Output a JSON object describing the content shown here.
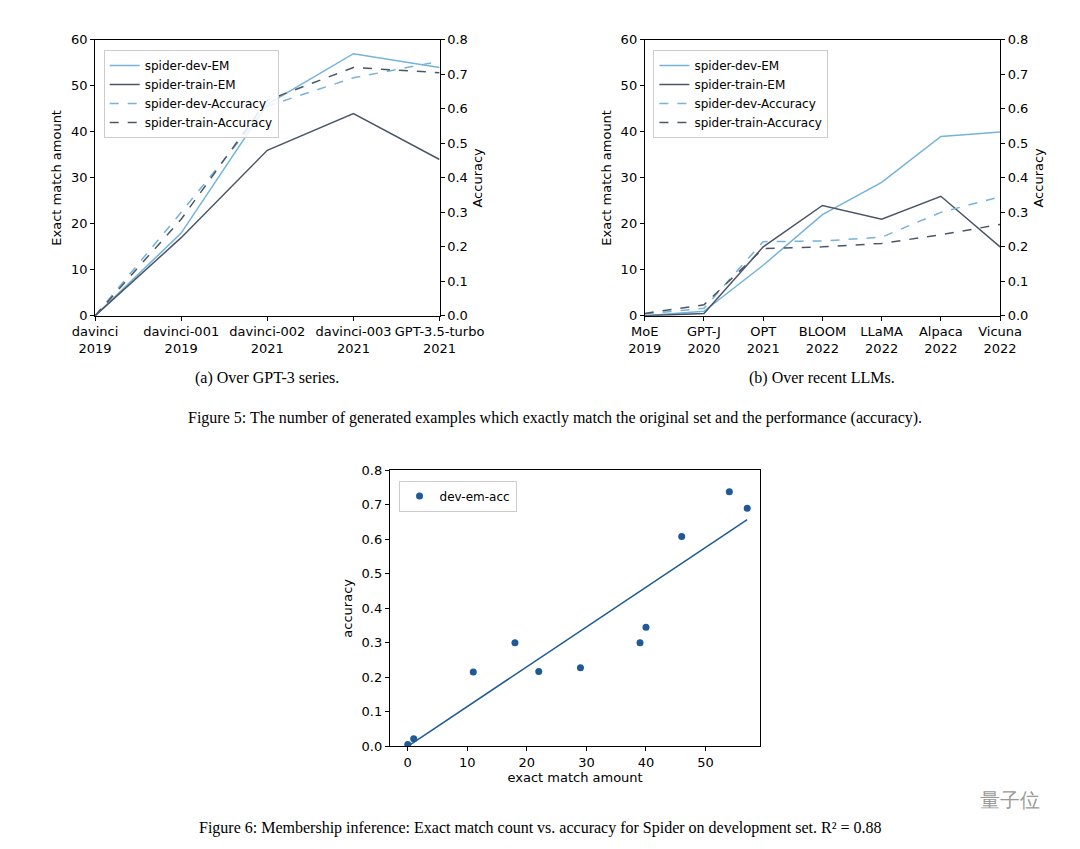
{
  "chart_data": [
    {
      "type": "line",
      "caption": "(a) Over GPT-3 series.",
      "categories": [
        "davinci\n2019",
        "davinci-001\n2019",
        "davinci-002\n2021",
        "davinci-003\n2021",
        "GPT-3.5-turbo\n2021"
      ],
      "ylabel": "Exact match amount",
      "y2label": "Accuracy",
      "ylim": [
        0,
        60
      ],
      "yticks": [
        0,
        10,
        20,
        30,
        40,
        50,
        60
      ],
      "y2lim": [
        0,
        0.8
      ],
      "y2ticks": [
        {
          "value": 0,
          "label": "0.0"
        },
        0.1,
        0.2,
        0.3,
        0.4,
        0.5,
        0.6,
        0.7,
        0.8
      ],
      "legend": "upper left",
      "series": [
        {
          "name": "spider-dev-EM",
          "color": "#74b3dc",
          "line_style": "solid",
          "values": [
            0,
            18,
            46,
            57,
            54
          ]
        },
        {
          "name": "spider-train-EM",
          "color": "#4b5666",
          "line_style": "solid",
          "values": [
            0,
            17,
            36,
            44,
            34
          ]
        },
        {
          "name": "spider-dev-Accuracy",
          "color": "#74b3dc",
          "line_style": "dashed",
          "axis": "y2",
          "values": [
            0,
            0.3,
            0.608,
            0.69,
            0.738
          ]
        },
        {
          "name": "spider-train-Accuracy",
          "color": "#4b5666",
          "line_style": "dashed",
          "axis": "y2",
          "values": [
            0,
            0.28,
            0.625,
            0.72,
            0.705
          ]
        }
      ]
    },
    {
      "type": "line",
      "caption": "(b) Over recent LLMs.",
      "categories": [
        "MoE\n2019",
        "GPT-J\n2020",
        "OPT\n2021",
        "BLOOM\n2022",
        "LLaMA\n2022",
        "Alpaca\n2022",
        "Vicuna\n2022"
      ],
      "ylabel": "Exact match amount",
      "y2label": "Accuracy",
      "ylim": [
        0,
        60
      ],
      "yticks": [
        0,
        10,
        20,
        30,
        40,
        50,
        60
      ],
      "y2lim": [
        0,
        0.8
      ],
      "y2ticks": [
        {
          "value": 0,
          "label": "0.0"
        },
        0.1,
        0.2,
        0.3,
        0.4,
        0.5,
        0.6,
        0.7,
        0.8
      ],
      "legend": "upper left",
      "series": [
        {
          "name": "spider-dev-EM",
          "color": "#74b3dc",
          "line_style": "solid",
          "values": [
            0,
            1,
            11,
            22,
            29,
            39,
            40
          ]
        },
        {
          "name": "spider-train-EM",
          "color": "#4b5666",
          "line_style": "solid",
          "values": [
            0,
            0.5,
            15,
            24,
            21,
            26,
            15
          ]
        },
        {
          "name": "spider-dev-Accuracy",
          "color": "#74b3dc",
          "line_style": "dashed",
          "axis": "y2",
          "values": [
            0.005,
            0.022,
            0.215,
            0.217,
            0.228,
            0.3,
            0.345
          ]
        },
        {
          "name": "spider-train-Accuracy",
          "color": "#4b5666",
          "line_style": "dashed",
          "axis": "y2",
          "values": [
            0.007,
            0.032,
            0.195,
            0.2,
            0.21,
            0.235,
            0.265
          ]
        }
      ]
    },
    {
      "type": "scatter",
      "caption": "Figure 6: Membership inference: Exact match count vs. accuracy for Spider on development set. R² = 0.88",
      "xlabel": "exact match amount",
      "ylabel": "accuracy",
      "xlim": [
        -3,
        59.2
      ],
      "xticks": [
        0,
        10,
        20,
        30,
        40,
        50
      ],
      "ylim": [
        0,
        0.8
      ],
      "yticks": [
        {
          "value": 0,
          "label": "0.0"
        },
        0.1,
        0.2,
        0.3,
        0.4,
        0.5,
        0.6,
        0.7,
        0.8
      ],
      "legend": "upper left",
      "series": [
        {
          "name": "dev-em-acc",
          "type": "scatter",
          "marker": "circle",
          "color": "#1f5a96",
          "x": [
            0,
            1,
            11,
            18,
            22,
            29,
            39,
            40,
            46,
            54,
            57
          ],
          "values": [
            0.005,
            0.022,
            0.215,
            0.3,
            0.217,
            0.228,
            0.3,
            0.345,
            0.608,
            0.738,
            0.69
          ]
        },
        {
          "type": "line",
          "line_style": "solid",
          "color": "#1f5a96",
          "x": [
            0,
            57
          ],
          "values": [
            0,
            0.657
          ]
        }
      ]
    }
  ],
  "figure_caption": "Figure 5: The number of generated examples which exactly match the original set and the performance (accuracy).",
  "watermark": "量子位"
}
